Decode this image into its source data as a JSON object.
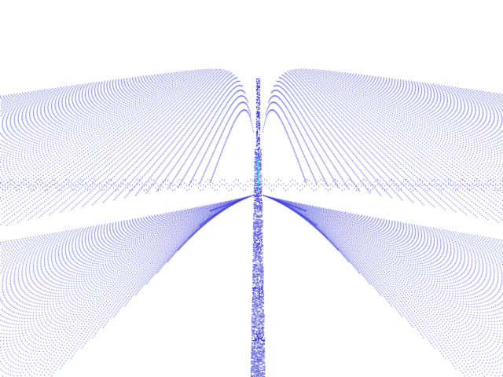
{
  "render": {
    "background_color": "#ffffff",
    "dot_color": "#3b3bdb",
    "center_accent_color": "#2ad6f0"
  }
}
